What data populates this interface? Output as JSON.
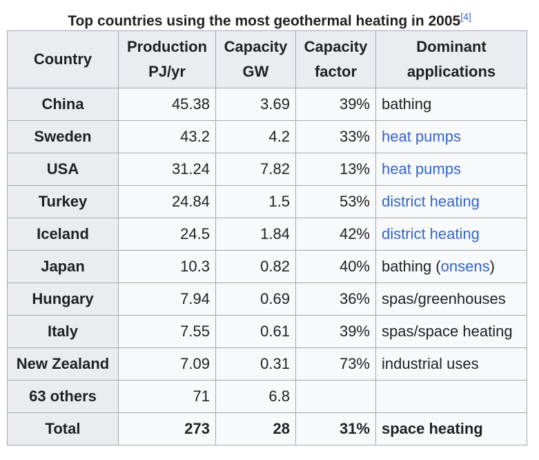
{
  "caption": {
    "text": "Top countries using the most geothermal heating in 2005",
    "ref": "[4]"
  },
  "headers": {
    "country": "Country",
    "production_line1": "Production",
    "production_line2": "PJ/yr",
    "capacity_line1": "Capacity",
    "capacity_line2": "GW",
    "factor_line1": "Capacity",
    "factor_line2": "factor",
    "apps_line1": "Dominant",
    "apps_line2": "applications"
  },
  "rows": [
    {
      "country": "China",
      "production": "45.38",
      "capacity": "3.69",
      "factor": "39%",
      "app_pre": "bathing",
      "app_link": "",
      "app_post": ""
    },
    {
      "country": "Sweden",
      "production": "43.2",
      "capacity": "4.2",
      "factor": "33%",
      "app_pre": "",
      "app_link": "heat pumps",
      "app_post": ""
    },
    {
      "country": "USA",
      "production": "31.24",
      "capacity": "7.82",
      "factor": "13%",
      "app_pre": "",
      "app_link": "heat pumps",
      "app_post": ""
    },
    {
      "country": "Turkey",
      "production": "24.84",
      "capacity": "1.5",
      "factor": "53%",
      "app_pre": "",
      "app_link": "district heating",
      "app_post": ""
    },
    {
      "country": "Iceland",
      "production": "24.5",
      "capacity": "1.84",
      "factor": "42%",
      "app_pre": "",
      "app_link": "district heating",
      "app_post": ""
    },
    {
      "country": "Japan",
      "production": "10.3",
      "capacity": "0.82",
      "factor": "40%",
      "app_pre": "bathing (",
      "app_link": "onsens",
      "app_post": ")"
    },
    {
      "country": "Hungary",
      "production": "7.94",
      "capacity": "0.69",
      "factor": "36%",
      "app_pre": "spas/greenhouses",
      "app_link": "",
      "app_post": ""
    },
    {
      "country": "Italy",
      "production": "7.55",
      "capacity": "0.61",
      "factor": "39%",
      "app_pre": "spas/space heating",
      "app_link": "",
      "app_post": ""
    },
    {
      "country": "New Zealand",
      "production": "7.09",
      "capacity": "0.31",
      "factor": "73%",
      "app_pre": "industrial uses",
      "app_link": "",
      "app_post": ""
    },
    {
      "country": "63 others",
      "production": "71",
      "capacity": "6.8",
      "factor": "",
      "app_pre": "",
      "app_link": "",
      "app_post": ""
    }
  ],
  "total": {
    "country": "Total",
    "production": "273",
    "capacity": "28",
    "factor": "31%",
    "app": "space heating"
  },
  "colors": {
    "link": "#3366cc",
    "header_bg": "#eaecf0",
    "cell_bg": "#f8f9fa",
    "border": "#a2a9b1"
  }
}
